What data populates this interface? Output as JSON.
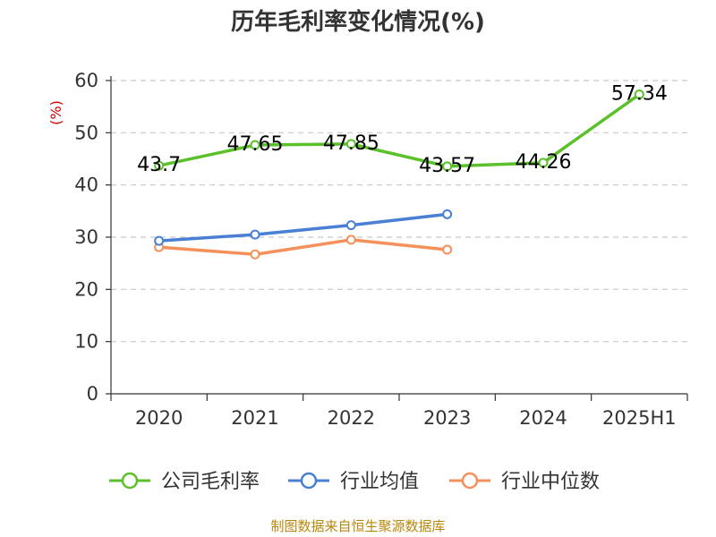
{
  "chart_data": {
    "type": "line",
    "title": "历年毛利率变化情况(%)",
    "unit": "(%)",
    "categories": [
      "2020",
      "2021",
      "2022",
      "2023",
      "2024",
      "2025H1"
    ],
    "ylim": [
      0,
      60
    ],
    "yticks": [
      0,
      10,
      20,
      30,
      40,
      50,
      60
    ],
    "grid": true,
    "legend_position": "bottom",
    "series": [
      {
        "name": "公司毛利率",
        "color": "#5bc12a",
        "values": [
          43.7,
          47.65,
          47.85,
          43.57,
          44.26,
          57.34
        ],
        "labels": [
          "43.7",
          "47.65",
          "47.85",
          "43.57",
          "44.26",
          "57.34"
        ]
      },
      {
        "name": "行业均值",
        "color": "#4a7fd6",
        "values": [
          29.3,
          30.5,
          32.3,
          34.4,
          null,
          null
        ]
      },
      {
        "name": "行业中位数",
        "color": "#f5905a",
        "values": [
          28.1,
          26.7,
          29.5,
          27.6,
          null,
          null
        ]
      }
    ]
  },
  "source": "制图数据来自恒生聚源数据库"
}
